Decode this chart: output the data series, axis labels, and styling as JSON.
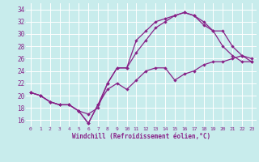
{
  "xlabel": "Windchill (Refroidissement éolien,°C)",
  "xlim": [
    -0.5,
    23.5
  ],
  "ylim": [
    15,
    35
  ],
  "yticks": [
    16,
    18,
    20,
    22,
    24,
    26,
    28,
    30,
    32,
    34
  ],
  "xticks": [
    0,
    1,
    2,
    3,
    4,
    5,
    6,
    7,
    8,
    9,
    10,
    11,
    12,
    13,
    14,
    15,
    16,
    17,
    18,
    19,
    20,
    21,
    22,
    23
  ],
  "bg_color": "#c8ecec",
  "grid_color": "#aadddd",
  "line_color": "#882288",
  "line1_x": [
    0,
    1,
    2,
    3,
    4,
    5,
    6,
    7,
    8,
    9,
    10,
    11,
    12,
    13,
    14,
    15,
    16,
    17,
    18,
    19,
    20,
    21,
    22,
    23
  ],
  "line1_y": [
    20.5,
    20.0,
    19.0,
    18.5,
    18.5,
    17.5,
    17.0,
    18.0,
    22.0,
    24.5,
    24.5,
    29.0,
    30.5,
    32.0,
    32.5,
    33.0,
    33.5,
    33.0,
    32.0,
    30.5,
    28.0,
    26.5,
    25.5,
    25.5
  ],
  "line2_x": [
    0,
    1,
    2,
    3,
    4,
    5,
    6,
    7,
    8,
    9,
    10,
    11,
    12,
    13,
    14,
    15,
    16,
    17,
    18,
    19,
    20,
    21,
    22,
    23
  ],
  "line2_y": [
    20.5,
    20.0,
    19.0,
    18.5,
    18.5,
    17.5,
    15.5,
    18.5,
    21.0,
    22.0,
    21.0,
    22.5,
    24.0,
    24.5,
    24.5,
    22.5,
    23.5,
    24.0,
    25.0,
    25.5,
    25.5,
    26.0,
    26.5,
    26.0
  ],
  "line3_x": [
    0,
    1,
    2,
    3,
    4,
    5,
    6,
    7,
    8,
    9,
    10,
    11,
    12,
    13,
    14,
    15,
    16,
    17,
    18,
    19,
    20,
    21,
    22,
    23
  ],
  "line3_y": [
    20.5,
    20.0,
    19.0,
    18.5,
    18.5,
    17.5,
    15.5,
    18.5,
    22.0,
    24.5,
    24.5,
    27.0,
    29.0,
    31.0,
    32.0,
    33.0,
    33.5,
    33.0,
    31.5,
    30.5,
    30.5,
    28.0,
    26.5,
    25.5
  ],
  "fig_w": 3.2,
  "fig_h": 2.0,
  "dpi": 100
}
